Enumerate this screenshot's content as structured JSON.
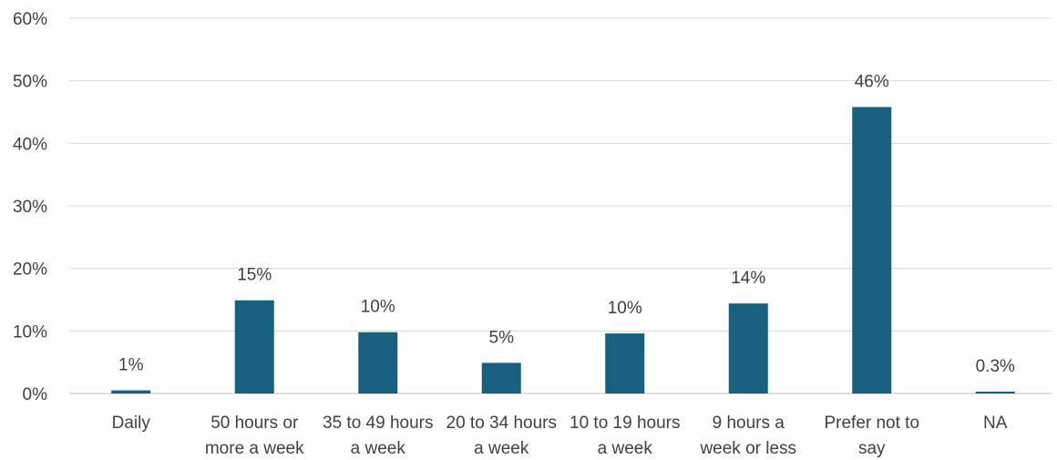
{
  "chart_data": {
    "type": "bar",
    "categories": [
      [
        "Daily"
      ],
      [
        "50 hours or",
        "more a week"
      ],
      [
        "35 to 49 hours",
        "a week"
      ],
      [
        "20 to 34 hours",
        "a week"
      ],
      [
        "10 to 19 hours",
        "a week"
      ],
      [
        "9 hours a",
        "week or less"
      ],
      [
        "Prefer not to",
        "say"
      ],
      [
        "NA"
      ]
    ],
    "values": [
      0.5,
      14.9,
      9.8,
      4.9,
      9.6,
      14.4,
      45.8,
      0.3
    ],
    "data_labels": [
      "1%",
      "15%",
      "10%",
      "5%",
      "10%",
      "14%",
      "46%",
      "0.3%"
    ],
    "ylim": [
      0,
      60
    ],
    "yticks": [
      0,
      10,
      20,
      30,
      40,
      50,
      60
    ],
    "ytick_labels": [
      "0%",
      "10%",
      "20%",
      "30%",
      "40%",
      "50%",
      "60%"
    ],
    "grid": true,
    "bar_color": "#17607f",
    "grid_color": "#d9d9d9",
    "title": "",
    "xlabel": "",
    "ylabel": ""
  }
}
